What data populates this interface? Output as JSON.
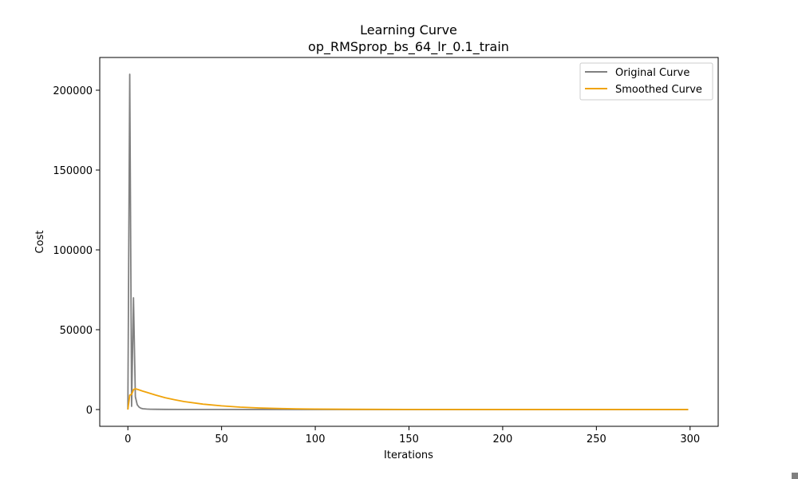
{
  "chart_data": {
    "type": "line",
    "title": "Learning Curve",
    "subtitle": "op_RMSprop_bs_64_lr_0.1_train",
    "xlabel": "Iterations",
    "ylabel": "Cost",
    "xlim": [
      -15,
      315
    ],
    "ylim": [
      -10500,
      220500
    ],
    "xticks": [
      0,
      50,
      100,
      150,
      200,
      250,
      300
    ],
    "yticks": [
      0,
      50000,
      100000,
      150000,
      200000
    ],
    "grid": false,
    "legend_position": "top-right",
    "series": [
      {
        "name": "Original Curve",
        "color": "#808080",
        "x": [
          0,
          1,
          2,
          3,
          4,
          5,
          6,
          7,
          8,
          10,
          12,
          15,
          20,
          30,
          50,
          100,
          150,
          200,
          250,
          299
        ],
        "y": [
          0,
          210000,
          2000,
          70000,
          8000,
          3000,
          1500,
          800,
          500,
          300,
          200,
          150,
          100,
          80,
          60,
          40,
          30,
          25,
          20,
          20
        ]
      },
      {
        "name": "Smoothed Curve",
        "color": "#f0a30a",
        "x": [
          0,
          1,
          2,
          3,
          4,
          5,
          6,
          8,
          10,
          15,
          20,
          25,
          30,
          40,
          50,
          60,
          70,
          80,
          90,
          100,
          120,
          150,
          200,
          250,
          299
        ],
        "y": [
          0,
          9000,
          9500,
          12500,
          13000,
          12700,
          12300,
          11500,
          10800,
          9000,
          7400,
          6100,
          5000,
          3400,
          2300,
          1500,
          1000,
          700,
          450,
          300,
          150,
          60,
          30,
          20,
          20
        ]
      }
    ]
  }
}
